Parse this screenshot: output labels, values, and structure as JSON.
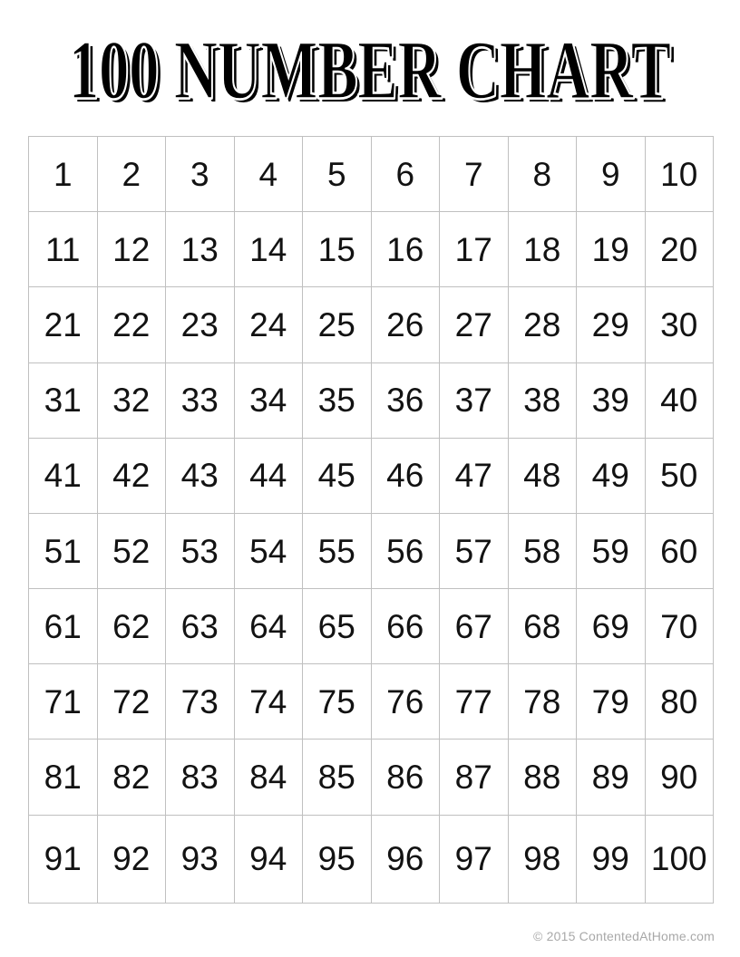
{
  "page": {
    "title": "100 NUMBER CHART",
    "footer_copyright": "© 2015 ContentedAtHome.com"
  },
  "number_grid": {
    "rows": 10,
    "columns": 10,
    "numbers": [
      1,
      2,
      3,
      4,
      5,
      6,
      7,
      8,
      9,
      10,
      11,
      12,
      13,
      14,
      15,
      16,
      17,
      18,
      19,
      20,
      21,
      22,
      23,
      24,
      25,
      26,
      27,
      28,
      29,
      30,
      31,
      32,
      33,
      34,
      35,
      36,
      37,
      38,
      39,
      40,
      41,
      42,
      43,
      44,
      45,
      46,
      47,
      48,
      49,
      50,
      51,
      52,
      53,
      54,
      55,
      56,
      57,
      58,
      59,
      60,
      61,
      62,
      63,
      64,
      65,
      66,
      67,
      68,
      69,
      70,
      71,
      72,
      73,
      74,
      75,
      76,
      77,
      78,
      79,
      80,
      81,
      82,
      83,
      84,
      85,
      86,
      87,
      88,
      89,
      90,
      91,
      92,
      93,
      94,
      95,
      96,
      97,
      98,
      99,
      100
    ]
  },
  "colors": {
    "background": "#ffffff",
    "title_text": "#000000",
    "grid_border": "#c0c0c0",
    "number_text": "#121212",
    "footer_text": "#a8a8a8"
  }
}
